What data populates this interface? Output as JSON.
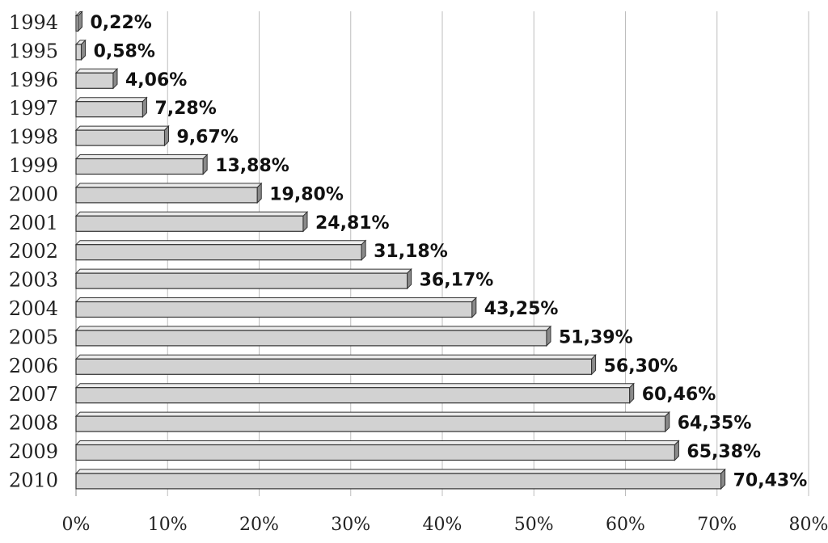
{
  "chart_data": {
    "type": "bar",
    "orientation": "horizontal",
    "categories": [
      "1994",
      "1995",
      "1996",
      "1997",
      "1998",
      "1999",
      "2000",
      "2001",
      "2002",
      "2003",
      "2004",
      "2005",
      "2006",
      "2007",
      "2008",
      "2009",
      "2010"
    ],
    "values": [
      0.22,
      0.58,
      4.06,
      7.28,
      9.67,
      13.88,
      19.8,
      24.81,
      31.18,
      36.17,
      43.25,
      51.39,
      56.3,
      60.46,
      64.35,
      65.38,
      70.43
    ],
    "data_labels": [
      "0,22%",
      "0,58%",
      "4,06%",
      "7,28%",
      "9,67%",
      "13,88%",
      "19,80%",
      "24,81%",
      "31,18%",
      "36,17%",
      "43,25%",
      "51,39%",
      "56,30%",
      "60,46%",
      "64,35%",
      "65,38%",
      "70,43%"
    ],
    "x_ticks": [
      "0%",
      "10%",
      "20%",
      "30%",
      "40%",
      "50%",
      "60%",
      "70%",
      "80%"
    ],
    "xlim": [
      0,
      80
    ],
    "grid": "vertical",
    "legend": "none",
    "colors": {
      "bar_front": "#d2d2d2",
      "bar_top": "#ececec",
      "bar_side": "#8a8a8a",
      "outline": "#333333",
      "grid": "#bdbdbd"
    }
  }
}
